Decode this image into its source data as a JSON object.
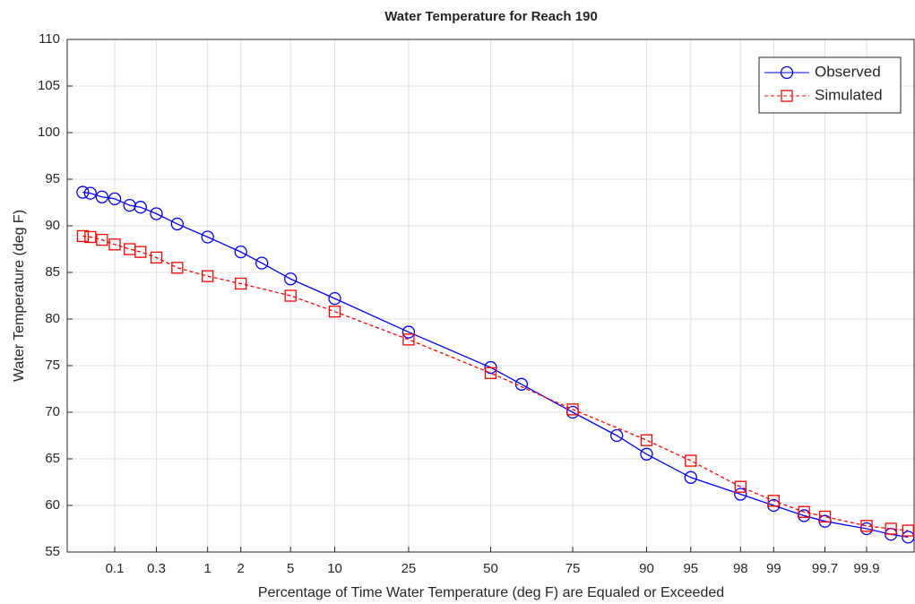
{
  "chart_data": {
    "type": "line",
    "title": "Water Temperature for Reach 190",
    "x_label": "Percentage of Time Water Temperature (deg F) are Equaled or Exceeded",
    "y_label": "Water Temperature (deg F)",
    "x_scale": "normal-probability",
    "xlim": [
      0.025,
      99.975
    ],
    "xticks": [
      0.1,
      0.3,
      1,
      2,
      5,
      10,
      25,
      50,
      75,
      90,
      95,
      98,
      99,
      99.7,
      99.9
    ],
    "ylim": [
      55,
      110
    ],
    "yticks": [
      55,
      60,
      65,
      70,
      75,
      80,
      85,
      90,
      95,
      100,
      105,
      110
    ],
    "grid": true,
    "legend": "top-right",
    "series": [
      {
        "name": "Observed",
        "color": "#0000ff",
        "marker": "circle",
        "x": [
          0.04,
          0.05,
          0.07,
          0.1,
          0.15,
          0.2,
          0.3,
          0.5,
          1,
          2,
          3,
          5,
          10,
          25,
          50,
          60,
          75,
          85,
          90,
          95,
          98,
          99,
          99.5,
          99.7,
          99.9,
          99.95,
          99.97
        ],
        "values": [
          93.6,
          93.5,
          93.1,
          92.9,
          92.2,
          92.0,
          91.3,
          90.2,
          88.8,
          87.2,
          86.0,
          84.3,
          82.2,
          78.6,
          74.8,
          73.0,
          70.0,
          67.5,
          65.5,
          63.0,
          61.2,
          60.0,
          58.9,
          58.3,
          57.5,
          56.9,
          56.6
        ]
      },
      {
        "name": "Simulated",
        "color": "#ff0000",
        "marker": "square",
        "x": [
          0.04,
          0.05,
          0.07,
          0.1,
          0.15,
          0.2,
          0.3,
          0.5,
          1,
          2,
          5,
          10,
          25,
          50,
          75,
          90,
          95,
          98,
          99,
          99.5,
          99.7,
          99.9,
          99.95,
          99.97
        ],
        "values": [
          88.9,
          88.8,
          88.5,
          88.0,
          87.5,
          87.2,
          86.6,
          85.5,
          84.6,
          83.8,
          82.5,
          80.8,
          77.8,
          74.2,
          70.3,
          67.0,
          64.8,
          62.0,
          60.5,
          59.3,
          58.8,
          57.8,
          57.5,
          57.3
        ]
      }
    ]
  }
}
